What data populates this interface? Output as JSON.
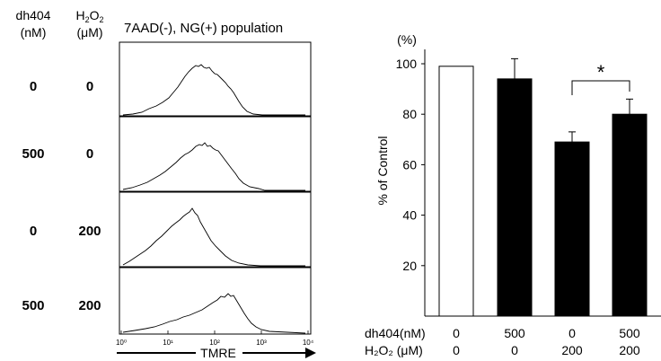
{
  "left_panel": {
    "col1_header": [
      "dh404",
      "(nM)"
    ],
    "col2_header_main": "H",
    "col2_header_sub": "2",
    "col2_header_tail": "O",
    "col2_header_sub2": "2",
    "col2_header_unit": "(μM)",
    "population_title": "7AAD(-), NG(+) population",
    "rows": [
      {
        "dh404": "0",
        "h2o2": "0"
      },
      {
        "dh404": "500",
        "h2o2": "0"
      },
      {
        "dh404": "0",
        "h2o2": "200"
      },
      {
        "dh404": "500",
        "h2o2": "200"
      }
    ],
    "x_ticks": [
      "10⁰",
      "10¹",
      "10²",
      "10³",
      "10⁴"
    ],
    "x_label": "TMRE"
  },
  "chart_data": {
    "type": "bar",
    "categories": [
      "1",
      "2",
      "3",
      "4"
    ],
    "values": [
      99,
      94,
      69,
      80
    ],
    "errors": [
      0,
      8,
      4,
      6
    ],
    "fills": [
      "#ffffff",
      "#000000",
      "#000000",
      "#000000"
    ],
    "ylabel": "% of Control",
    "yunit": "(%)",
    "yticks": [
      "20",
      "40",
      "60",
      "80",
      "100"
    ],
    "ylim": [
      0,
      110
    ],
    "row_labels": [
      {
        "label": "dh404(nM)",
        "values": [
          "0",
          "500",
          "0",
          "500"
        ]
      },
      {
        "label": "H₂O₂ (μM)",
        "values": [
          "0",
          "0",
          "200",
          "200"
        ]
      }
    ],
    "significance": {
      "from": 2,
      "to": 3,
      "label": "*"
    }
  }
}
